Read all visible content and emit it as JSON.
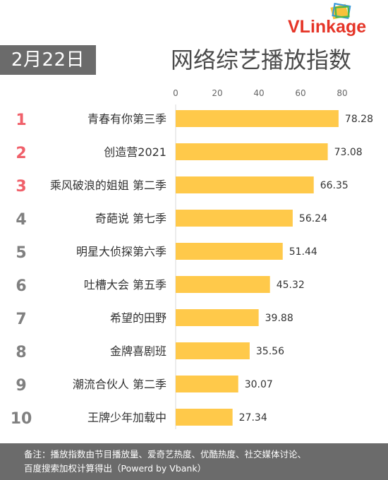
{
  "header": {
    "date": "2月22日",
    "title": "网络综艺播放指数",
    "logo": {
      "prefix": "VL",
      "ink": "ink",
      "suffix": "age",
      "icon": "vlinkage-frames-logo"
    }
  },
  "chart_data": {
    "type": "bar",
    "orientation": "horizontal",
    "title": "网络综艺播放指数",
    "xlim": [
      0,
      80
    ],
    "xticks": [
      "0",
      "20",
      "40",
      "60",
      "80"
    ],
    "grid": false,
    "legend": "none",
    "bar_color": "#ffc94a",
    "rank_color_top": "#f0606a",
    "rank_color_rest": "#808080",
    "ranks": [
      "1",
      "2",
      "3",
      "4",
      "5",
      "6",
      "7",
      "8",
      "9",
      "10"
    ],
    "categories": [
      "青春有你第三季",
      "创造营2021",
      "乘风破浪的姐姐 第二季",
      "奇葩说 第七季",
      "明星大侦探第六季",
      "吐槽大会 第五季",
      "希望的田野",
      "金牌喜剧班",
      "潮流合伙人 第二季",
      "王牌少年加载中"
    ],
    "values": [
      78.28,
      73.08,
      66.35,
      56.24,
      51.44,
      45.32,
      39.88,
      35.56,
      30.07,
      27.34
    ],
    "value_labels": [
      "78.28",
      "73.08",
      "66.35",
      "56.24",
      "51.44",
      "45.32",
      "39.88",
      "35.56",
      "30.07",
      "27.34"
    ]
  },
  "footer": {
    "line1": "备注：播放指数由节目播放量、爱奇艺热度、优酷热度、社交媒体讨论、",
    "line2": "百度搜索加权计算得出（Powerd by Vbank）"
  }
}
